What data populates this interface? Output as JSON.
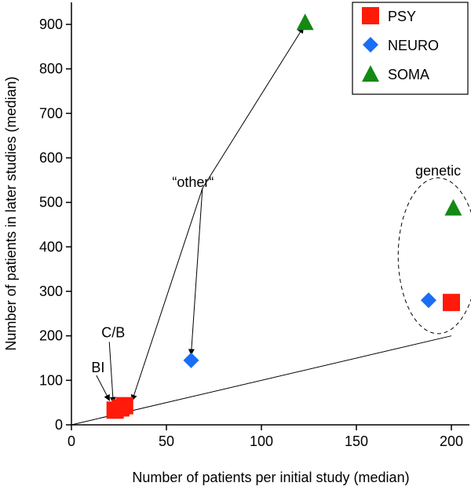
{
  "chart_data": {
    "type": "scatter",
    "title": "",
    "xlabel": "Number of patients per initial study (median)",
    "ylabel": "Number of patients in later studies (median)",
    "xlim": [
      0,
      210
    ],
    "ylim": [
      0,
      950
    ],
    "xticks": [
      0,
      50,
      100,
      150,
      200
    ],
    "yticks": [
      0,
      100,
      200,
      300,
      400,
      500,
      600,
      700,
      800,
      900
    ],
    "series": [
      {
        "name": "PSY",
        "marker": "square",
        "color": "#ff1a0a",
        "points": [
          {
            "x": 23,
            "y": 33
          },
          {
            "x": 26,
            "y": 38
          },
          {
            "x": 28,
            "y": 43
          },
          {
            "x": 200,
            "y": 275
          }
        ]
      },
      {
        "name": "NEURO",
        "marker": "diamond",
        "color": "#1a6ef5",
        "points": [
          {
            "x": 63,
            "y": 145
          },
          {
            "x": 188,
            "y": 280
          }
        ]
      },
      {
        "name": "SOMA",
        "marker": "triangle",
        "color": "#138a13",
        "points": [
          {
            "x": 123,
            "y": 905
          },
          {
            "x": 201,
            "y": 488
          }
        ]
      }
    ],
    "reference_line": {
      "from": [
        0,
        0
      ],
      "to": [
        200,
        200
      ]
    },
    "annotations": [
      {
        "text": "“other“",
        "x": 64,
        "y": 535,
        "arrows_to": [
          [
            122,
            893
          ],
          [
            63,
            158
          ],
          [
            32,
            55
          ]
        ]
      },
      {
        "text": "C/B",
        "x": 22,
        "y": 197,
        "arrows_to": [
          [
            22,
            50
          ]
        ]
      },
      {
        "text": "BI",
        "x": 14,
        "y": 118,
        "arrows_to": [
          [
            20,
            55
          ]
        ]
      },
      {
        "text": "genetic",
        "x": 193,
        "y": 560
      }
    ],
    "ellipse": {
      "label": "genetic",
      "cx": 193,
      "cy": 380,
      "rx": 21,
      "ry": 175
    },
    "legend": {
      "position": "top-right",
      "entries": [
        "PSY",
        "NEURO",
        "SOMA"
      ]
    }
  }
}
